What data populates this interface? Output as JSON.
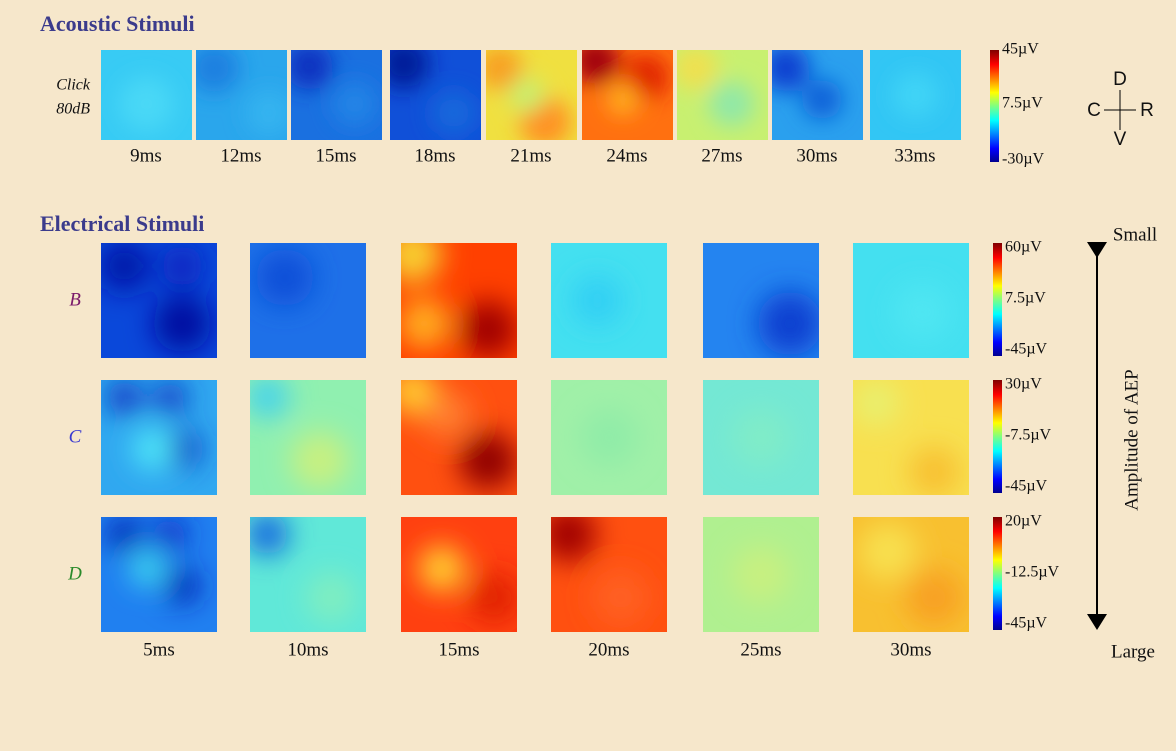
{
  "acoustic": {
    "title": "Acoustic Stimuli",
    "stimulus": [
      "Click",
      "80dB"
    ],
    "times": [
      "9ms",
      "12ms",
      "15ms",
      "18ms",
      "21ms",
      "24ms",
      "27ms",
      "30ms",
      "33ms"
    ],
    "colorbar": [
      "45µV",
      "7.5µV",
      "-30µV"
    ],
    "orientation": {
      "up": "D",
      "left": "C",
      "right": "R",
      "down": "V"
    }
  },
  "electrical": {
    "title": "Electrical Stimuli",
    "rows": [
      {
        "label": "B",
        "colorbar": [
          "60µV",
          "7.5µV",
          "-45µV"
        ]
      },
      {
        "label": "C",
        "colorbar": [
          "30µV",
          "-7.5µV",
          "-45µV"
        ]
      },
      {
        "label": "D",
        "colorbar": [
          "20µV",
          "-12.5µV",
          "-45µV"
        ]
      }
    ],
    "times": [
      "5ms",
      "10ms",
      "15ms",
      "20ms",
      "25ms",
      "30ms"
    ],
    "scale": {
      "top": "Small",
      "bottom": "Large",
      "label": "Amplitude of AEP"
    }
  }
}
